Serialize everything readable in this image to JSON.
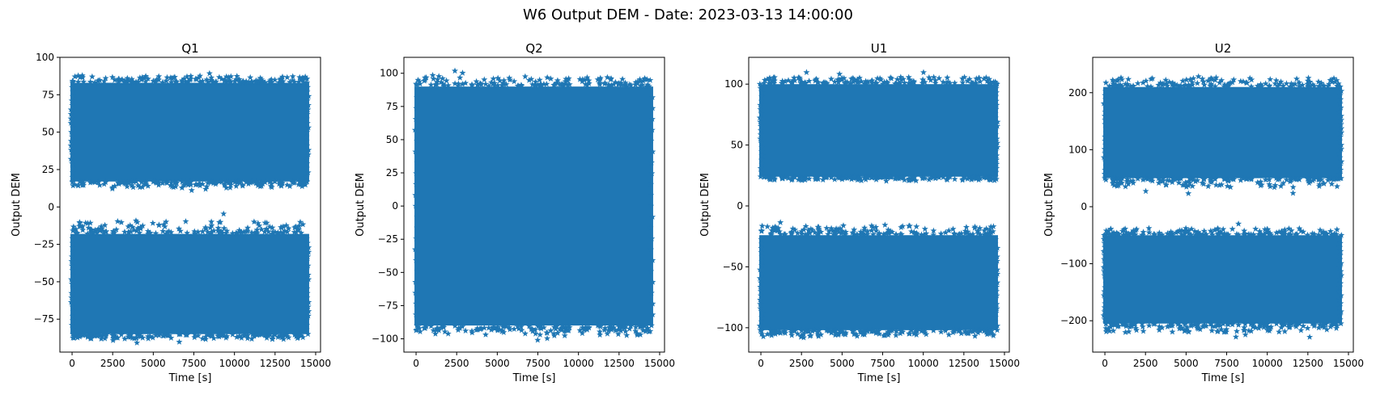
{
  "figure": {
    "suptitle": "W6 Output DEM - Date: 2023-03-13 14:00:00"
  },
  "chart_data": [
    {
      "type": "scatter",
      "title": "Q1",
      "xlabel": "Time [s]",
      "ylabel": "Output DEM",
      "marker": "star",
      "color": "#1f77b4",
      "xlim": [
        -750,
        15300
      ],
      "ylim": [
        -97,
        100
      ],
      "xticks": [
        0,
        2500,
        5000,
        7500,
        10000,
        12500,
        15000
      ],
      "yticks": [
        -75,
        -50,
        -25,
        0,
        25,
        50,
        75,
        100
      ],
      "series": [
        {
          "x_range": [
            0,
            14500
          ],
          "y_dense_range": [
            17,
            83
          ],
          "y_extent": [
            10,
            91
          ]
        },
        {
          "x_range": [
            0,
            14500
          ],
          "y_dense_range": [
            -85,
            -18
          ],
          "y_extent": [
            -91,
            -3
          ]
        }
      ]
    },
    {
      "type": "scatter",
      "title": "Q2",
      "xlabel": "Time [s]",
      "ylabel": "Output DEM",
      "marker": "star",
      "color": "#1f77b4",
      "xlim": [
        -750,
        15300
      ],
      "ylim": [
        -110,
        112
      ],
      "xticks": [
        0,
        2500,
        5000,
        7500,
        10000,
        12500,
        15000
      ],
      "yticks": [
        -100,
        -75,
        -50,
        -25,
        0,
        25,
        50,
        75,
        100
      ],
      "series": [
        {
          "x_range": [
            0,
            14500
          ],
          "y_dense_range": [
            -90,
            90
          ],
          "y_extent": [
            -101,
            102
          ]
        }
      ]
    },
    {
      "type": "scatter",
      "title": "U1",
      "xlabel": "Time [s]",
      "ylabel": "Output DEM",
      "marker": "star",
      "color": "#1f77b4",
      "xlim": [
        -750,
        15300
      ],
      "ylim": [
        -120,
        122
      ],
      "xticks": [
        0,
        2500,
        5000,
        7500,
        10000,
        12500,
        15000
      ],
      "yticks": [
        -100,
        -50,
        0,
        50,
        100
      ],
      "series": [
        {
          "x_range": [
            0,
            14500
          ],
          "y_dense_range": [
            24,
            100
          ],
          "y_extent": [
            19,
            110
          ]
        },
        {
          "x_range": [
            0,
            14500
          ],
          "y_dense_range": [
            -102,
            -24
          ],
          "y_extent": [
            -110,
            -10
          ]
        }
      ]
    },
    {
      "type": "scatter",
      "title": "U2",
      "xlabel": "Time [s]",
      "ylabel": "Output DEM",
      "marker": "star",
      "color": "#1f77b4",
      "xlim": [
        -750,
        15300
      ],
      "ylim": [
        -255,
        262
      ],
      "xticks": [
        0,
        2500,
        5000,
        7500,
        10000,
        12500,
        15000
      ],
      "yticks": [
        -200,
        -100,
        0,
        100,
        200
      ],
      "series": [
        {
          "x_range": [
            0,
            14500
          ],
          "y_dense_range": [
            50,
            210
          ],
          "y_extent": [
            22,
            238
          ]
        },
        {
          "x_range": [
            0,
            14500
          ],
          "y_dense_range": [
            -205,
            -50
          ],
          "y_extent": [
            -232,
            -30
          ]
        }
      ]
    }
  ]
}
